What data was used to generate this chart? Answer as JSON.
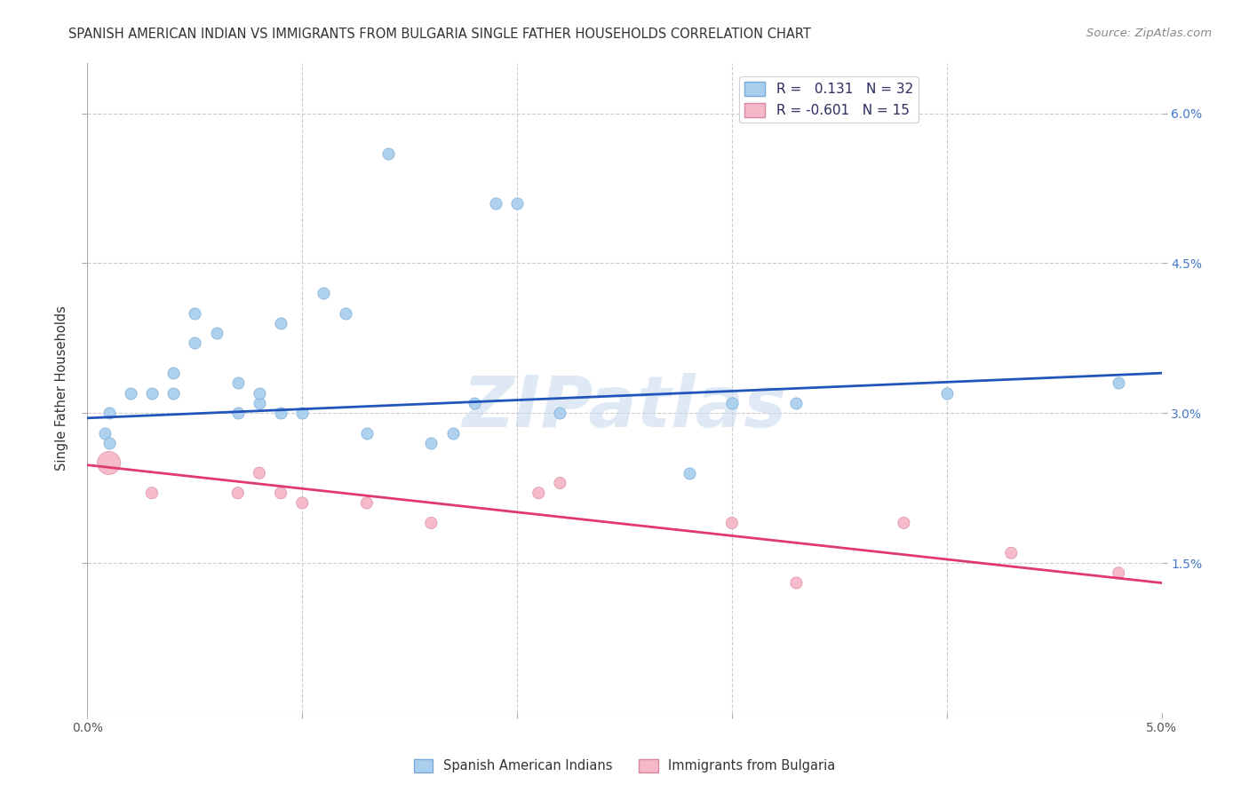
{
  "title": "SPANISH AMERICAN INDIAN VS IMMIGRANTS FROM BULGARIA SINGLE FATHER HOUSEHOLDS CORRELATION CHART",
  "source": "Source: ZipAtlas.com",
  "ylabel": "Single Father Households",
  "xlim": [
    0.0,
    0.05
  ],
  "ylim": [
    0.0,
    0.065
  ],
  "ytick_positions": [
    0.015,
    0.03,
    0.045,
    0.06
  ],
  "ytick_labels": [
    "1.5%",
    "3.0%",
    "4.5%",
    "6.0%"
  ],
  "xtick_positions": [
    0.0,
    0.01,
    0.02,
    0.03,
    0.04,
    0.05
  ],
  "xtick_labels": [
    "0.0%",
    "",
    "",
    "",
    "",
    "5.0%"
  ],
  "blue_R": 0.131,
  "blue_N": 32,
  "pink_R": -0.601,
  "pink_N": 15,
  "blue_color": "#aacfee",
  "pink_color": "#f5b8c8",
  "blue_line_color": "#2255bb",
  "pink_line_color": "#e03870",
  "watermark": "ZIPatlas",
  "legend_label_blue": "Spanish American Indians",
  "legend_label_pink": "Immigrants from Bulgaria",
  "blue_points_x": [
    0.0008,
    0.001,
    0.001,
    0.002,
    0.003,
    0.004,
    0.004,
    0.005,
    0.005,
    0.006,
    0.007,
    0.007,
    0.008,
    0.008,
    0.009,
    0.009,
    0.01,
    0.011,
    0.012,
    0.013,
    0.014,
    0.016,
    0.017,
    0.018,
    0.019,
    0.02,
    0.022,
    0.028,
    0.03,
    0.033,
    0.04,
    0.048
  ],
  "blue_points_y": [
    0.028,
    0.027,
    0.03,
    0.032,
    0.032,
    0.032,
    0.034,
    0.037,
    0.04,
    0.038,
    0.03,
    0.033,
    0.031,
    0.032,
    0.03,
    0.039,
    0.03,
    0.042,
    0.04,
    0.028,
    0.056,
    0.027,
    0.028,
    0.031,
    0.051,
    0.051,
    0.03,
    0.024,
    0.031,
    0.031,
    0.032,
    0.033
  ],
  "pink_points_x": [
    0.001,
    0.003,
    0.007,
    0.008,
    0.009,
    0.01,
    0.013,
    0.016,
    0.021,
    0.022,
    0.03,
    0.033,
    0.038,
    0.043,
    0.048
  ],
  "pink_points_y": [
    0.025,
    0.022,
    0.022,
    0.024,
    0.022,
    0.021,
    0.021,
    0.019,
    0.022,
    0.023,
    0.019,
    0.013,
    0.019,
    0.016,
    0.014
  ],
  "pink_sizes_large": [
    0
  ],
  "blue_trend_x": [
    0.0,
    0.05
  ],
  "blue_trend_y": [
    0.0295,
    0.034
  ],
  "pink_trend_x": [
    0.0,
    0.05
  ],
  "pink_trend_y": [
    0.0248,
    0.013
  ]
}
